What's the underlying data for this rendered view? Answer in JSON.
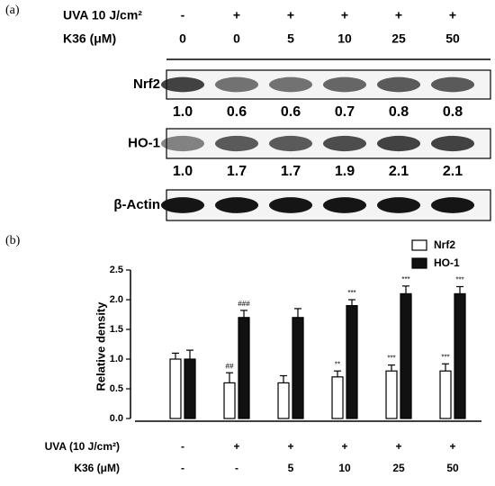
{
  "blot": {
    "panel_label": "(a)",
    "treatments": [
      {
        "name": "UVA 10 J/cm²",
        "levels": [
          "-",
          "+",
          "+",
          "+",
          "+",
          "+"
        ]
      },
      {
        "name": "K36 (μM)",
        "levels": [
          "0",
          "0",
          "5",
          "10",
          "25",
          "50"
        ]
      }
    ],
    "proteins": [
      {
        "name": "Nrf2",
        "ratios": [
          "1.0",
          "0.6",
          "0.6",
          "0.7",
          "0.8",
          "0.8"
        ]
      },
      {
        "name": "HO-1",
        "ratios": [
          "1.0",
          "1.7",
          "1.7",
          "1.9",
          "2.1",
          "2.1"
        ]
      },
      {
        "name": "β-Actin"
      }
    ]
  },
  "chart_data": {
    "type": "bar",
    "panel_label": "(b)",
    "ylabel": "Relative density",
    "ylim": [
      0,
      2.5
    ],
    "yticks": [
      {
        "value": 0,
        "label": "0.0"
      },
      0.5,
      {
        "value": 1,
        "label": "1.0"
      },
      1.5,
      {
        "value": 2,
        "label": "2.0"
      },
      2.5
    ],
    "series": [
      {
        "name": "Nrf2",
        "color": "#ffffff",
        "values": [
          1.0,
          0.6,
          0.6,
          0.7,
          0.8,
          0.8
        ],
        "errors": [
          0.1,
          0.17,
          0.12,
          0.1,
          0.1,
          0.12
        ],
        "annotations": [
          null,
          "##",
          null,
          "**",
          "***",
          "***"
        ]
      },
      {
        "name": "HO-1",
        "color": "#111111",
        "values": [
          1.0,
          1.7,
          1.7,
          1.9,
          2.1,
          2.1
        ],
        "errors": [
          0.15,
          0.12,
          0.15,
          0.1,
          0.13,
          0.12
        ],
        "annotations": [
          null,
          "###",
          null,
          "***",
          "***",
          "***"
        ]
      }
    ],
    "conditions": [
      {
        "name": "UVA (10 J/cm²)",
        "levels": [
          "-",
          "+",
          "+",
          "+",
          "+",
          "+"
        ]
      },
      {
        "name": "K36 (μM)",
        "levels": [
          "-",
          "-",
          "5",
          "10",
          "25",
          "50"
        ]
      }
    ]
  }
}
